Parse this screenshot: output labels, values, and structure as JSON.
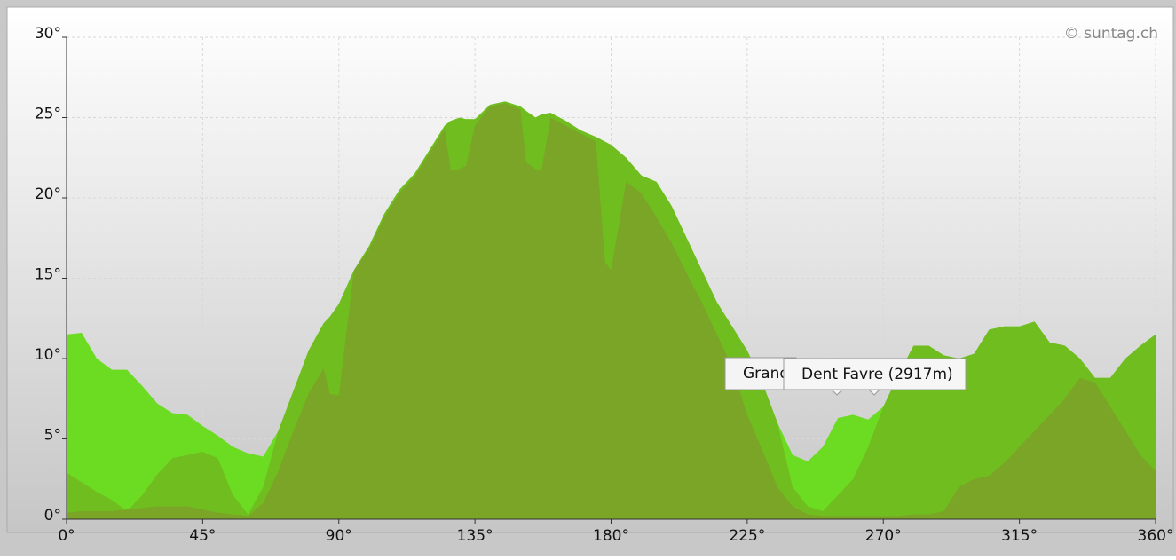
{
  "chart_data": {
    "type": "area",
    "credit": "© suntag.ch",
    "x": [
      0,
      5,
      10,
      15,
      20,
      25,
      30,
      35,
      40,
      45,
      50,
      55,
      60,
      65,
      70,
      75,
      80,
      85,
      87,
      90,
      95,
      100,
      105,
      110,
      115,
      120,
      125,
      127,
      130,
      132,
      135,
      140,
      145,
      150,
      152,
      155,
      157,
      160,
      165,
      170,
      175,
      178,
      180,
      185,
      190,
      195,
      200,
      205,
      210,
      215,
      220,
      225,
      230,
      235,
      240,
      245,
      250,
      255,
      260,
      265,
      270,
      275,
      280,
      285,
      290,
      295,
      300,
      305,
      310,
      315,
      320,
      325,
      330,
      335,
      340,
      345,
      350,
      355,
      360
    ],
    "series": [
      {
        "color": "#6cdc22",
        "values": [
          11.5,
          11.6,
          10,
          9.3,
          9.3,
          8.3,
          7.2,
          6.6,
          6.5,
          5.8,
          5.2,
          4.5,
          4.1,
          3.9,
          5.5,
          8,
          10.5,
          12.2,
          12.6,
          13.4,
          15.5,
          17,
          19,
          20.5,
          21.5,
          23,
          24.5,
          24.8,
          25,
          24.9,
          24.9,
          25.8,
          26,
          25.7,
          25.4,
          25,
          25.2,
          25.3,
          24.8,
          24.2,
          23.8,
          23.5,
          23.3,
          22.5,
          21.4,
          21,
          19.5,
          17.5,
          15.5,
          13.5,
          12,
          10.5,
          8.5,
          6,
          4,
          3.6,
          4.5,
          6.3,
          6.5,
          6.2,
          7,
          9,
          10.8,
          10.8,
          10.2,
          10,
          10.3,
          11.8,
          12,
          12,
          12.3,
          11,
          10.8,
          10,
          8.8,
          8.8,
          10,
          10.8,
          11.5
        ]
      },
      {
        "color": "#70bd20",
        "values": [
          2.9,
          2.3,
          1.7,
          1.2,
          0.5,
          1.5,
          2.8,
          3.8,
          4,
          4.2,
          3.8,
          1.5,
          0.3,
          2,
          5.5,
          8,
          10.5,
          12.2,
          12.6,
          13.4,
          15.5,
          17,
          19,
          20.5,
          21.5,
          23,
          24.5,
          24.8,
          25,
          24.9,
          24.9,
          25.8,
          26,
          25.7,
          25.4,
          25,
          25.2,
          25.3,
          24.8,
          24.2,
          23.8,
          23.5,
          23.3,
          22.5,
          21.4,
          21,
          19.5,
          17.5,
          15.5,
          13.5,
          12,
          10.5,
          8.5,
          6,
          2,
          0.8,
          0.5,
          1.5,
          2.5,
          4.5,
          7,
          9,
          10.8,
          10.8,
          10.2,
          10,
          10.3,
          11.8,
          12,
          12,
          12.3,
          11,
          10.8,
          10,
          8.8,
          8.8,
          10,
          10.8,
          11.5
        ]
      },
      {
        "color": "#7aa526",
        "values": [
          0.4,
          0.5,
          0.5,
          0.5,
          0.6,
          0.7,
          0.8,
          0.8,
          0.8,
          0.6,
          0.4,
          0.3,
          0.2,
          1,
          3,
          5.5,
          7.8,
          9.4,
          7.8,
          7.7,
          15.5,
          16.8,
          18.8,
          20.3,
          21.3,
          22.8,
          24.3,
          21.7,
          21.8,
          22,
          24.5,
          25.7,
          25.9,
          25.5,
          22.2,
          21.8,
          21.7,
          25,
          24.5,
          24,
          23.5,
          16,
          15.5,
          21,
          20.3,
          18.8,
          17.2,
          15.3,
          13.5,
          11.5,
          9.5,
          6.5,
          4.3,
          2,
          0.8,
          0.3,
          0.2,
          0.2,
          0.2,
          0.2,
          0.2,
          0.2,
          0.3,
          0.3,
          0.5,
          2,
          2.5,
          2.7,
          3.5,
          4.5,
          5.5,
          6.5,
          7.5,
          8.8,
          8.5,
          7,
          5.5,
          4,
          3
        ]
      }
    ],
    "xlim": [
      0,
      360
    ],
    "ylim": [
      0,
      30
    ],
    "xticks": [
      {
        "value": 0,
        "label": "0°"
      },
      {
        "value": 45,
        "label": "45°"
      },
      {
        "value": 90,
        "label": "90°"
      },
      {
        "value": 135,
        "label": "135°"
      },
      {
        "value": 180,
        "label": "180°"
      },
      {
        "value": 225,
        "label": "225°"
      },
      {
        "value": 270,
        "label": "270°"
      },
      {
        "value": 315,
        "label": "315°"
      },
      {
        "value": 360,
        "label": "360°"
      }
    ],
    "yticks": [
      {
        "value": 0,
        "label": "0°"
      },
      {
        "value": 5,
        "label": "5°"
      },
      {
        "value": 10,
        "label": "10°"
      },
      {
        "value": 15,
        "label": "15°"
      },
      {
        "value": 20,
        "label": "20°"
      },
      {
        "value": 25,
        "label": "25°"
      },
      {
        "value": 30,
        "label": "30°"
      }
    ],
    "grid": true,
    "annotations": [
      {
        "label": "Grand"
      },
      {
        "label": "Dent Favre (2917m)"
      }
    ]
  }
}
